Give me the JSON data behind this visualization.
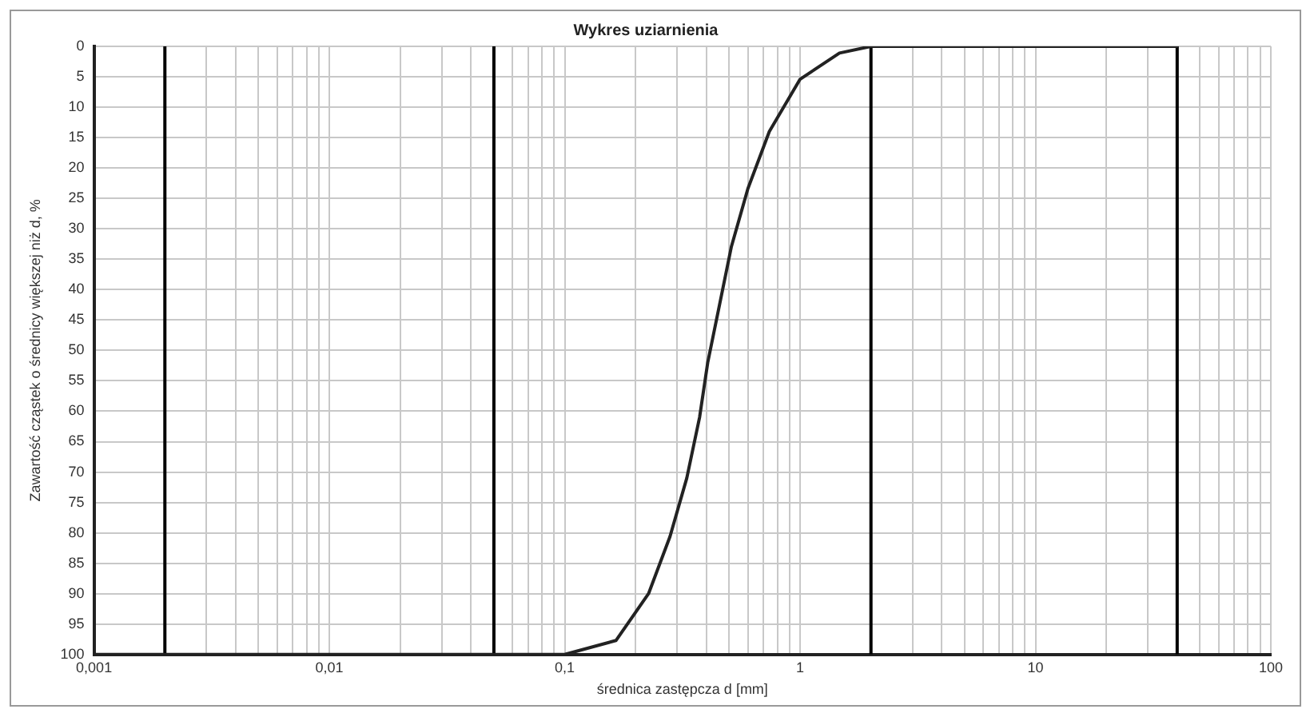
{
  "chart_data": {
    "type": "line",
    "title": "Wykres uziarnienia",
    "xlabel": "średnica zastępcza d [mm]",
    "ylabel": "Zawartość cząstek o średnicy większej niż d, %",
    "log": "x",
    "grid": true,
    "legend": false,
    "marker": "none",
    "line_style": "solid",
    "xlim": [
      0.001,
      100
    ],
    "ylim": [
      100,
      0
    ],
    "xticks": [
      {
        "value": 0.001,
        "label": "0,001"
      },
      {
        "value": 0.003,
        "label": null
      },
      {
        "value": 0.004,
        "label": null
      },
      {
        "value": 0.005,
        "label": null
      },
      {
        "value": 0.006,
        "label": null
      },
      {
        "value": 0.007,
        "label": null
      },
      {
        "value": 0.008,
        "label": null
      },
      {
        "value": 0.009,
        "label": null
      },
      {
        "value": 0.01,
        "label": "0,01"
      },
      {
        "value": 0.02,
        "label": null
      },
      {
        "value": 0.03,
        "label": null
      },
      {
        "value": 0.04,
        "label": null
      },
      {
        "value": 0.06,
        "label": null
      },
      {
        "value": 0.07,
        "label": null
      },
      {
        "value": 0.08,
        "label": null
      },
      {
        "value": 0.09,
        "label": null
      },
      {
        "value": 0.1,
        "label": "0,1"
      },
      {
        "value": 0.2,
        "label": null
      },
      {
        "value": 0.3,
        "label": null
      },
      {
        "value": 0.4,
        "label": null
      },
      {
        "value": 0.5,
        "label": null
      },
      {
        "value": 0.6,
        "label": null
      },
      {
        "value": 0.7,
        "label": null
      },
      {
        "value": 0.8,
        "label": null
      },
      {
        "value": 0.9,
        "label": null
      },
      {
        "value": 1,
        "label": "1"
      },
      {
        "value": 3,
        "label": null
      },
      {
        "value": 4,
        "label": null
      },
      {
        "value": 5,
        "label": null
      },
      {
        "value": 6,
        "label": null
      },
      {
        "value": 7,
        "label": null
      },
      {
        "value": 8,
        "label": null
      },
      {
        "value": 9,
        "label": null
      },
      {
        "value": 10,
        "label": "10"
      },
      {
        "value": 20,
        "label": null
      },
      {
        "value": 30,
        "label": null
      },
      {
        "value": 50,
        "label": null
      },
      {
        "value": 60,
        "label": null
      },
      {
        "value": 70,
        "label": null
      },
      {
        "value": 80,
        "label": null
      },
      {
        "value": 90,
        "label": null
      },
      {
        "value": 100,
        "label": "100"
      }
    ],
    "yticks": [
      0,
      5,
      10,
      15,
      20,
      25,
      30,
      35,
      40,
      45,
      50,
      55,
      60,
      65,
      70,
      75,
      80,
      85,
      90,
      95,
      100
    ],
    "series": [
      {
        "color": "#222222",
        "x": [
          0.001,
          0.1,
          0.165,
          0.227,
          0.28,
          0.33,
          0.374,
          0.405,
          0.454,
          0.51,
          0.6,
          0.74,
          1.0,
          1.47,
          2,
          40
        ],
        "values": [
          100,
          100,
          97.7,
          90,
          80.6,
          71,
          61,
          52,
          42.6,
          33,
          23.4,
          14,
          5.4,
          1.1,
          0,
          0
        ]
      }
    ],
    "ref_lines": [
      {
        "axis": "x",
        "value": 0.002,
        "color": "#000000"
      },
      {
        "axis": "x",
        "value": 0.05,
        "color": "#000000"
      },
      {
        "axis": "x",
        "value": 2,
        "color": "#000000"
      },
      {
        "axis": "x",
        "value": 40,
        "color": "#000000"
      }
    ]
  }
}
